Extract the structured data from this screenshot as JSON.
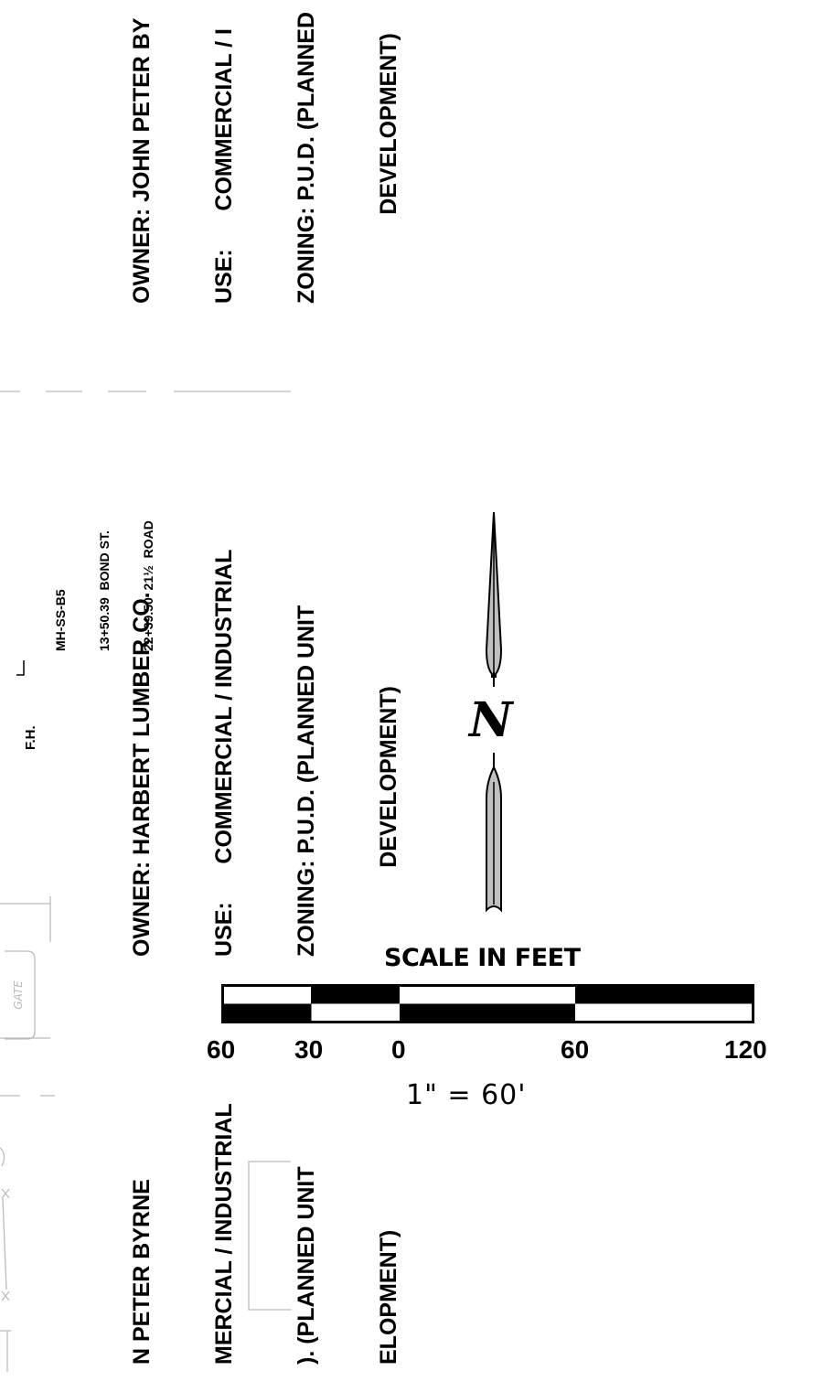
{
  "owner_blocks": {
    "top": {
      "lines": [
        "OWNER: JOHN PETER BY",
        "USE:      COMMERCIAL / I",
        "ZONING: P.U.D. (PLANNED",
        "              DEVELOPMENT)"
      ]
    },
    "middle": {
      "lines": [
        "OWNER: HARBERT LUMBER CO.",
        "USE:      COMMERCIAL / INDUSTRIAL",
        "ZONING: P.U.D. (PLANNED UNIT",
        "              DEVELOPMENT)"
      ]
    },
    "bottom": {
      "lines": [
        "N PETER BYRNE",
        "MERCIAL / INDUSTRIAL",
        "). (PLANNED UNIT",
        "ELOPMENT)"
      ]
    }
  },
  "manhole": {
    "id": "MH-SS-B5",
    "station_1": "13+50.39  BOND ST.",
    "station_2": "22+39.50  21½  ROAD"
  },
  "fire_hydrant_label": "F.H.",
  "north_arrow": {
    "letter": "N"
  },
  "scale": {
    "title": "SCALE  IN  FEET",
    "ticks": [
      "60",
      "30",
      "0",
      "60",
      "120"
    ],
    "ratio": "1\"  =  60'"
  },
  "colors": {
    "ink": "#000000",
    "arrow_fill": "#c0c0c0",
    "linework": "#bbbbbb"
  }
}
